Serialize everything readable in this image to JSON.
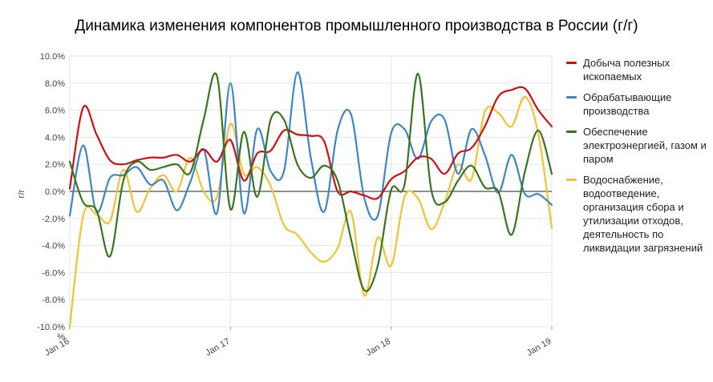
{
  "chart_data": {
    "type": "line",
    "title": "Динамика изменения компонентов промышленного производства в России (г/г)",
    "ylabel": "г/г",
    "ylim": [
      -10,
      10
    ],
    "y_ticks": [
      "10.0%",
      "8.0%",
      "6.0%",
      "4.0%",
      "2.0%",
      "0.0%",
      "-2.0%",
      "-4.0%",
      "-6.0%",
      "-8.0%",
      "-10.0%"
    ],
    "y_tick_suffix": "%",
    "x_ticks": [
      "Jan 16",
      "Jan 17",
      "Jan 18",
      "Jan 19"
    ],
    "x_range": [
      "Jan 16",
      "Jan 19"
    ],
    "x": [
      "Jan 16",
      "Feb 16",
      "Mar 16",
      "Apr 16",
      "May 16",
      "Jun 16",
      "Jul 16",
      "Aug 16",
      "Sep 16",
      "Oct 16",
      "Nov 16",
      "Dec 16",
      "Jan 17",
      "Feb 17",
      "Mar 17",
      "Apr 17",
      "May 17",
      "Jun 17",
      "Jul 17",
      "Aug 17",
      "Sep 17",
      "Oct 17",
      "Nov 17",
      "Dec 17",
      "Jan 18",
      "Feb 18",
      "Mar 18",
      "Apr 18",
      "May 18",
      "Jun 18",
      "Jul 18",
      "Aug 18",
      "Sep 18",
      "Oct 18",
      "Nov 18",
      "Dec 18",
      "Jan 19"
    ],
    "grid": true,
    "legend_position": "right",
    "zero_line": true,
    "series": [
      {
        "name": "Добыча полезных ископаемых",
        "color": "#cc1111",
        "values": [
          0.2,
          6.2,
          4.2,
          2.3,
          2.0,
          2.3,
          2.5,
          2.5,
          2.7,
          2.2,
          3.1,
          2.2,
          3.8,
          0.8,
          2.8,
          3.0,
          4.5,
          4.2,
          4.1,
          3.7,
          0.0,
          0.0,
          -0.3,
          -0.5,
          0.9,
          1.5,
          2.5,
          2.4,
          1.3,
          2.8,
          3.2,
          4.8,
          7.0,
          7.5,
          7.6,
          6.0,
          4.8
        ]
      },
      {
        "name": "Обрабатывающие производства",
        "color": "#3d85c6",
        "values": [
          -1.8,
          3.4,
          -1.5,
          1.0,
          1.2,
          1.8,
          0.5,
          0.8,
          -1.4,
          0.7,
          3.1,
          -1.6,
          8.0,
          -1.6,
          4.6,
          1.5,
          1.5,
          8.8,
          2.5,
          -1.5,
          4.5,
          5.7,
          -0.5,
          -1.8,
          4.3,
          4.6,
          2.4,
          5.2,
          5.3,
          1.3,
          4.6,
          2.7,
          -0.1,
          2.7,
          -0.2,
          -0.2,
          -1.0
        ]
      },
      {
        "name": "Обеспечение электроэнергией, газом и паром",
        "color": "#38761d",
        "values": [
          2.2,
          -0.8,
          -1.4,
          -4.8,
          0.8,
          2.2,
          1.6,
          1.8,
          2.0,
          1.4,
          5.3,
          8.5,
          -1.3,
          4.4,
          -0.4,
          5.3,
          5.3,
          2.0,
          1.0,
          1.9,
          0.8,
          -3.5,
          -7.3,
          -5.5,
          0.1,
          0.5,
          8.7,
          0.1,
          -0.8,
          0.8,
          1.9,
          0.3,
          0.0,
          -3.2,
          1.5,
          4.5,
          1.3
        ]
      },
      {
        "name": "Водоснабжение, водоотведение, организация сбора и утилизации отходов, деятельность по ликвидации загрязнений",
        "color": "#f1c232",
        "values": [
          -10.0,
          -1.8,
          -1.7,
          -2.2,
          1.6,
          -1.5,
          0.2,
          1.2,
          0.0,
          2.5,
          0.0,
          -0.4,
          5.0,
          1.3,
          1.8,
          0.4,
          -2.5,
          -3.2,
          -4.5,
          -5.2,
          -4.2,
          -1.5,
          -7.7,
          -3.4,
          -5.5,
          -0.4,
          -0.5,
          -2.8,
          -0.8,
          2.0,
          0.9,
          5.9,
          5.8,
          4.8,
          7.0,
          4.2,
          -2.7
        ]
      }
    ]
  }
}
